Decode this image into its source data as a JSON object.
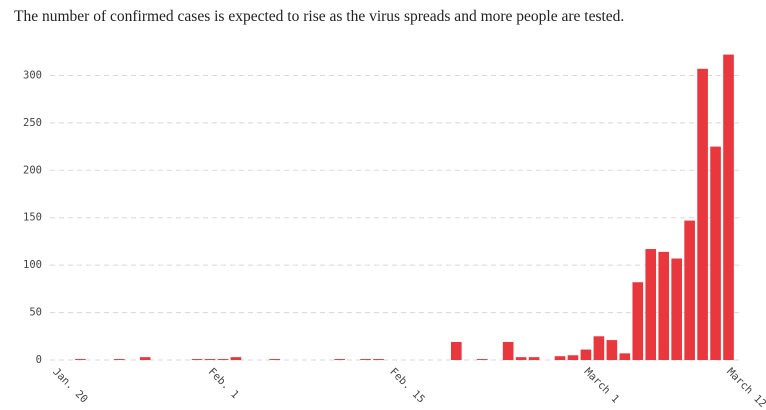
{
  "chart_data": {
    "type": "bar",
    "title": "The number of confirmed cases is expected to rise as the virus spreads and more people are tested.",
    "categories": [
      "Jan. 20",
      null,
      null,
      null,
      null,
      null,
      null,
      null,
      null,
      null,
      null,
      null,
      "Feb. 1",
      null,
      null,
      null,
      null,
      null,
      null,
      null,
      null,
      null,
      null,
      null,
      null,
      null,
      "Feb. 15",
      null,
      null,
      null,
      null,
      null,
      null,
      null,
      null,
      null,
      null,
      null,
      null,
      null,
      null,
      "March 1",
      null,
      null,
      null,
      null,
      null,
      null,
      null,
      null,
      null,
      null,
      "March 12"
    ],
    "values": [
      0,
      0,
      1,
      0,
      0,
      1,
      0,
      3,
      0,
      0,
      0,
      1,
      1,
      1,
      3,
      0,
      0,
      1,
      0,
      0,
      0,
      0,
      1,
      0,
      1,
      1,
      0,
      0,
      0,
      0,
      0,
      19,
      0,
      1,
      0,
      19,
      3,
      3,
      0,
      4,
      5,
      11,
      25,
      21,
      7,
      82,
      117,
      114,
      107,
      147,
      307,
      225,
      322
    ],
    "color": "#e8383d",
    "ylim": [
      0,
      330
    ],
    "yticks": [
      0,
      50,
      100,
      150,
      200,
      250,
      300
    ],
    "grid": true
  }
}
